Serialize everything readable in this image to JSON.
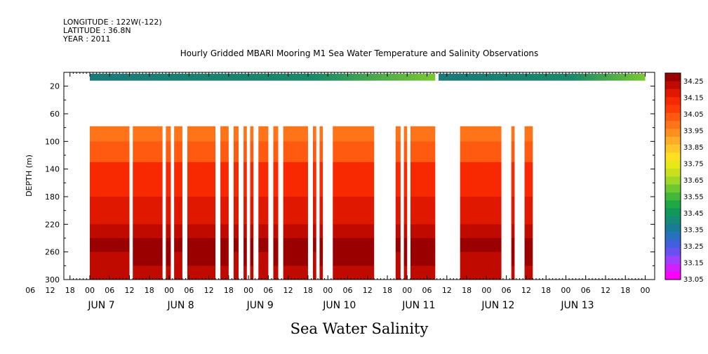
{
  "header": {
    "longitude": "LONGITUDE : 122W(-122)",
    "latitude": "LATITUDE : 36.8N",
    "year": "YEAR : 2011"
  },
  "chart_data": {
    "type": "heatmap",
    "title": "Hourly Gridded MBARI Mooring M1 Sea Water Temperature and Salinity Observations",
    "bottom_title": "Sea Water Salinity",
    "ylabel": "DEPTH (m)",
    "ylim": [
      300,
      0
    ],
    "y_ticks": [
      20,
      60,
      100,
      140,
      180,
      220,
      260,
      300
    ],
    "x_range_hours": [
      0,
      168
    ],
    "x_hour_labels": [
      "06",
      "12",
      "18",
      "00",
      "06",
      "12",
      "18",
      "00",
      "06",
      "12",
      "18",
      "00",
      "06",
      "12",
      "18",
      "00",
      "06",
      "12",
      "18",
      "00",
      "06",
      "12",
      "18",
      "00",
      "06",
      "12",
      "18",
      "00",
      "06",
      "12",
      "18",
      "00"
    ],
    "x_day_labels": [
      "JUN  7",
      "JUN  8",
      "JUN  9",
      "JUN 10",
      "JUN 11",
      "JUN 12",
      "JUN 13"
    ],
    "colorbar": {
      "min": 33.05,
      "max": 34.3,
      "step": 0.05,
      "labels": [
        "34.25",
        "34.15",
        "34.05",
        "33.95",
        "33.85",
        "33.75",
        "33.65",
        "33.55",
        "33.45",
        "33.35",
        "33.25",
        "33.15",
        "33.05"
      ],
      "colors": [
        "#ff00ff",
        "#d020ff",
        "#a040ff",
        "#6a50f0",
        "#4060e0",
        "#2a70c0",
        "#1a7a9a",
        "#168a78",
        "#10985a",
        "#20a845",
        "#40b838",
        "#70c830",
        "#a0d828",
        "#c8e020",
        "#e8e818",
        "#ffe020",
        "#ffc828",
        "#ffac28",
        "#ff9020",
        "#ff7418",
        "#ff5a10",
        "#ff3c08",
        "#f82800",
        "#e01800",
        "#c00a00",
        "#9a0000"
      ]
    },
    "surface_band": {
      "depth": 10,
      "note_color_left": "#1a7a7a",
      "note_color_right": "#7ac830"
    },
    "data_columns_hours": [
      [
        0,
        12
      ],
      [
        13,
        22
      ],
      [
        23,
        24.5
      ],
      [
        25.5,
        28
      ],
      [
        29.5,
        38
      ],
      [
        39.5,
        42
      ],
      [
        43.5,
        45
      ],
      [
        46.5,
        47.5
      ],
      [
        48.5,
        49.5
      ],
      [
        51,
        54
      ],
      [
        55.5,
        57
      ],
      [
        58.5,
        66
      ],
      [
        67.5,
        68.5
      ],
      [
        69.5,
        70.5
      ],
      [
        73.5,
        86
      ],
      [
        92.5,
        94
      ],
      [
        95,
        96
      ],
      [
        97,
        104.5
      ],
      [
        112,
        124.5
      ],
      [
        127.5,
        128.5
      ],
      [
        131.5,
        134
      ]
    ],
    "profile_depths": [
      78,
      100,
      130,
      180,
      220,
      240,
      260,
      280,
      300
    ],
    "profile_values": [
      33.97,
      34.02,
      34.09,
      34.16,
      34.21,
      34.25,
      34.28,
      34.24,
      34.2
    ]
  }
}
